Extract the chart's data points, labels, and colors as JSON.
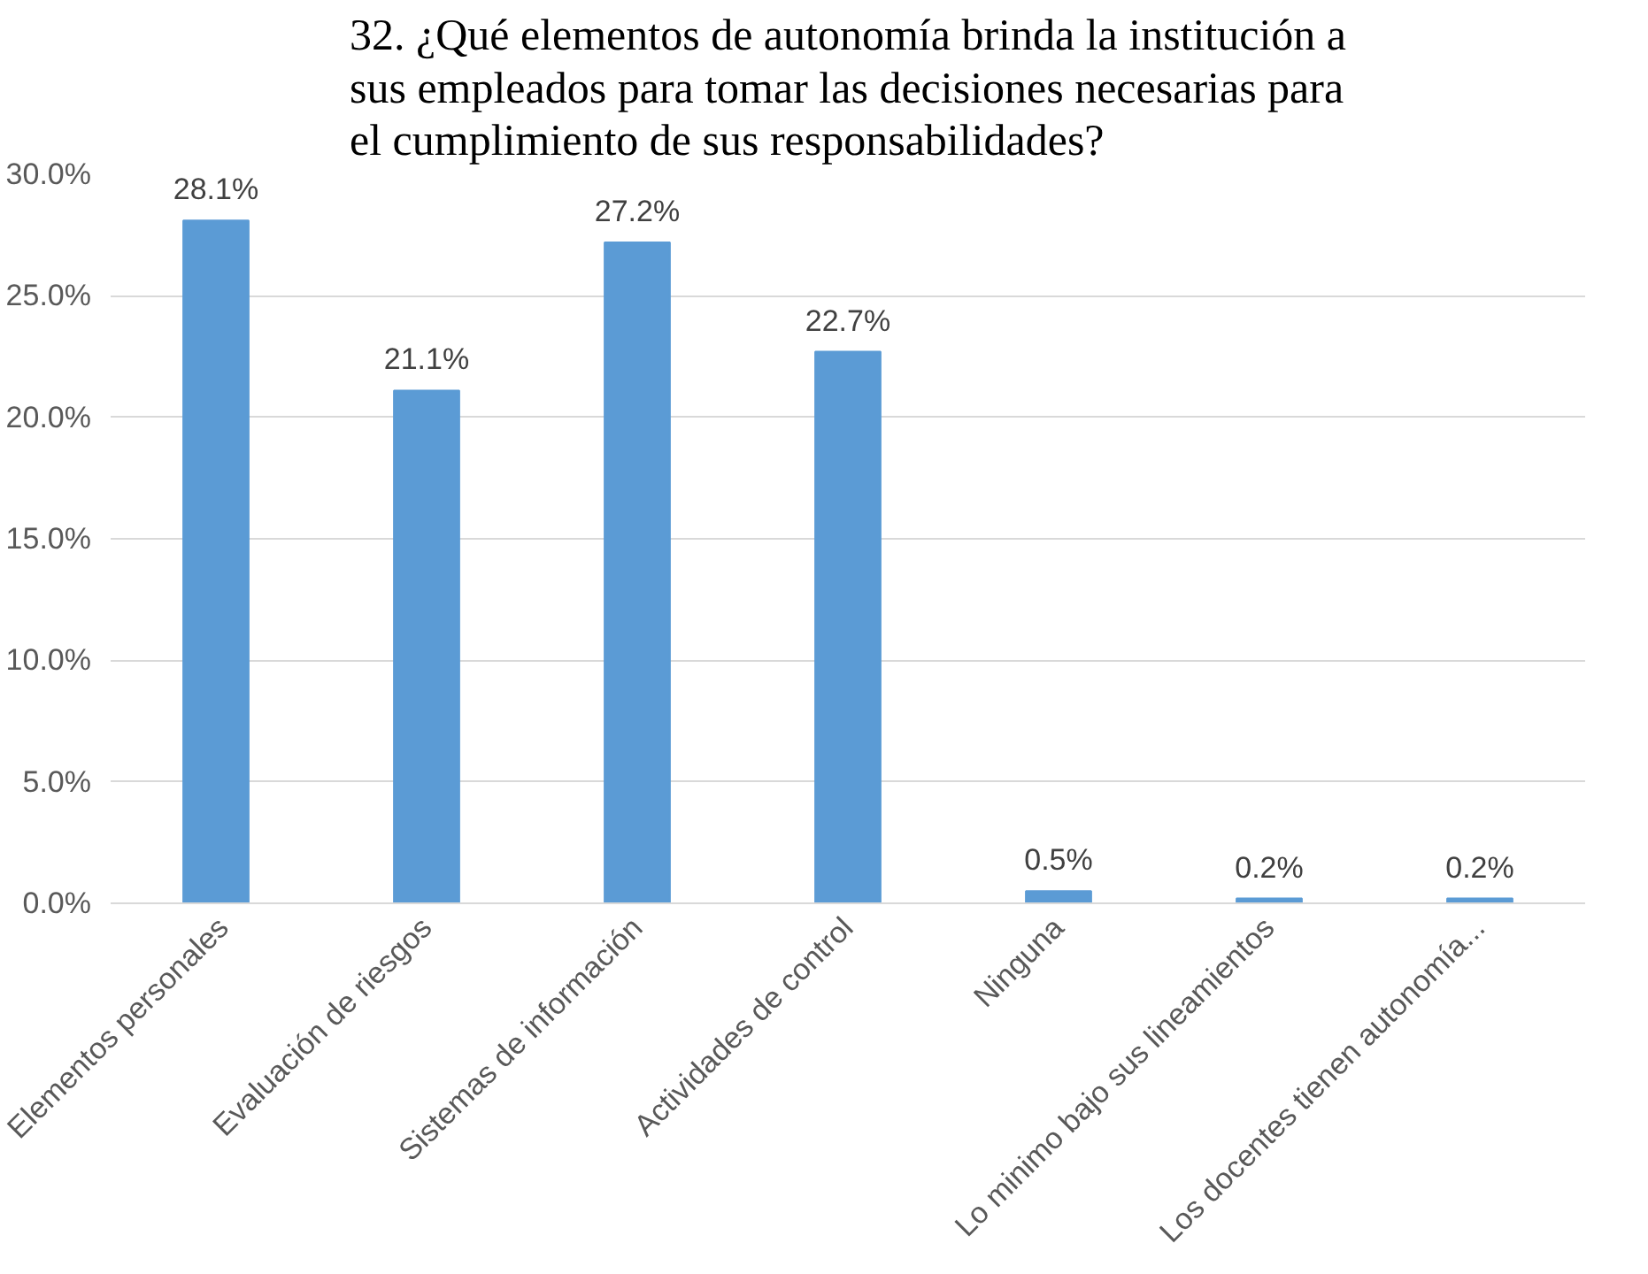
{
  "chart_data": {
    "type": "bar",
    "title": "32. ¿Qué elementos de autonomía brinda la institución a sus empleados para tomar las decisiones necesarias para el cumplimiento de sus responsabilidades?",
    "categories": [
      "Elementos personales",
      "Evaluación de riesgos",
      "Sistemas de información",
      "Actividades de control",
      "Ninguna",
      "Lo minimo bajo sus lineamientos",
      "Los docentes tienen autonomía..."
    ],
    "values": [
      28.1,
      21.1,
      27.2,
      22.7,
      0.5,
      0.2,
      0.2
    ],
    "value_labels": [
      "28.1%",
      "21.1%",
      "27.2%",
      "22.7%",
      "0.5%",
      "0.2%",
      "0.2%"
    ],
    "color": "#5b9bd5",
    "ylim": [
      0,
      30
    ],
    "yticks": [
      {
        "value": 0,
        "label": "0.0%"
      },
      {
        "value": 5,
        "label": "5.0%"
      },
      {
        "value": 10,
        "label": "10.0%"
      },
      {
        "value": 15,
        "label": "15.0%"
      },
      {
        "value": 20,
        "label": "20.0%"
      },
      {
        "value": 25,
        "label": "25.0%"
      },
      {
        "value": 30,
        "label": "30.0%"
      }
    ],
    "grid": "y"
  }
}
